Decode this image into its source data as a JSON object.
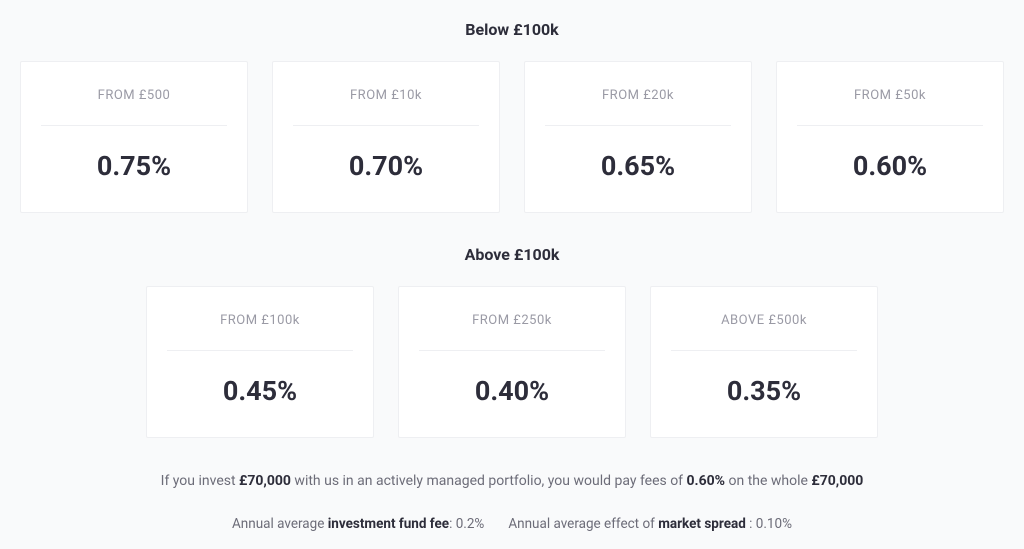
{
  "colors": {
    "background": "#f9fafb",
    "card_bg": "#ffffff",
    "card_border": "#eeeff2",
    "title_color": "#2d2d3a",
    "label_color": "#9a9aa5",
    "value_color": "#2d2d3a",
    "footer_color": "#6c6c78"
  },
  "typography": {
    "section_title_fontsize": 16,
    "card_label_fontsize": 13,
    "card_value_fontsize": 27,
    "footer_fontsize": 14
  },
  "sections": {
    "below": {
      "title": "Below £100k",
      "cards": [
        {
          "label": "FROM £500",
          "value": "0.75%"
        },
        {
          "label": "FROM £10k",
          "value": "0.70%"
        },
        {
          "label": "FROM £20k",
          "value": "0.65%"
        },
        {
          "label": "FROM £50k",
          "value": "0.60%"
        }
      ]
    },
    "above": {
      "title": "Above £100k",
      "cards": [
        {
          "label": "FROM £100k",
          "value": "0.45%"
        },
        {
          "label": "FROM £250k",
          "value": "0.40%"
        },
        {
          "label": "ABOVE £500k",
          "value": "0.35%"
        }
      ]
    }
  },
  "footer": {
    "line1_pre": "If you invest ",
    "line1_amount": "£70,000",
    "line1_mid": " with us in an actively managed portfolio, you would pay fees of ",
    "line1_rate": "0.60%",
    "line1_post": " on the whole ",
    "line1_amount2": "£70,000",
    "sub_pre1": "Annual average ",
    "sub_bold1": "investment fund fee",
    "sub_val1": ": 0.2%",
    "sub_pre2": "Annual average effect of ",
    "sub_bold2": "market spread",
    "sub_val2": " : 0.10%"
  }
}
